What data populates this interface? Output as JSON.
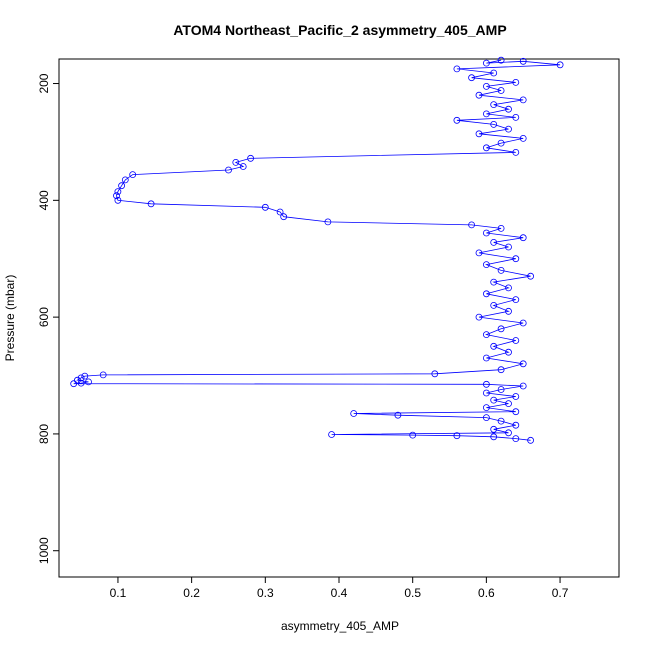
{
  "chart_data": {
    "type": "line",
    "title": "ATOM4 Northeast_Pacific_2 asymmetry_405_AMP",
    "xlabel": "asymmetry_405_AMP",
    "ylabel": "Pressure (mbar)",
    "xlim": [
      0.02,
      0.78
    ],
    "ylim": [
      1045,
      158
    ],
    "y_reversed": true,
    "x_ticks": [
      0.1,
      0.2,
      0.3,
      0.4,
      0.5,
      0.6,
      0.7
    ],
    "x_tick_labels": [
      "0.1",
      "0.2",
      "0.3",
      "0.4",
      "0.5",
      "0.6",
      "0.7"
    ],
    "y_ticks": [
      200,
      400,
      600,
      800,
      1000
    ],
    "y_tick_labels": [
      "200",
      "400",
      "600",
      "800",
      "1000"
    ],
    "marker": "open-circle",
    "line_color": "#0000ff",
    "series": [
      {
        "points": [
          [
            0.62,
            160
          ],
          [
            0.6,
            165
          ],
          [
            0.65,
            162
          ],
          [
            0.7,
            168
          ],
          [
            0.56,
            175
          ],
          [
            0.61,
            182
          ],
          [
            0.58,
            190
          ],
          [
            0.64,
            198
          ],
          [
            0.6,
            205
          ],
          [
            0.62,
            212
          ],
          [
            0.59,
            220
          ],
          [
            0.65,
            228
          ],
          [
            0.61,
            236
          ],
          [
            0.63,
            244
          ],
          [
            0.6,
            252
          ],
          [
            0.64,
            258
          ],
          [
            0.56,
            263
          ],
          [
            0.61,
            270
          ],
          [
            0.63,
            278
          ],
          [
            0.59,
            286
          ],
          [
            0.65,
            294
          ],
          [
            0.62,
            302
          ],
          [
            0.6,
            310
          ],
          [
            0.64,
            318
          ],
          [
            0.28,
            328
          ],
          [
            0.26,
            335
          ],
          [
            0.27,
            342
          ],
          [
            0.25,
            348
          ],
          [
            0.12,
            356
          ],
          [
            0.11,
            365
          ],
          [
            0.105,
            375
          ],
          [
            0.1,
            385
          ],
          [
            0.098,
            392
          ],
          [
            0.1,
            400
          ],
          [
            0.145,
            406
          ],
          [
            0.3,
            412
          ],
          [
            0.32,
            420
          ],
          [
            0.325,
            428
          ],
          [
            0.385,
            437
          ],
          [
            0.58,
            442
          ],
          [
            0.62,
            448
          ],
          [
            0.6,
            456
          ],
          [
            0.65,
            464
          ],
          [
            0.61,
            472
          ],
          [
            0.63,
            480
          ],
          [
            0.59,
            490
          ],
          [
            0.64,
            500
          ],
          [
            0.6,
            510
          ],
          [
            0.62,
            520
          ],
          [
            0.66,
            530
          ],
          [
            0.61,
            540
          ],
          [
            0.63,
            550
          ],
          [
            0.6,
            560
          ],
          [
            0.64,
            570
          ],
          [
            0.61,
            580
          ],
          [
            0.63,
            590
          ],
          [
            0.59,
            600
          ],
          [
            0.65,
            610
          ],
          [
            0.62,
            620
          ],
          [
            0.6,
            630
          ],
          [
            0.64,
            640
          ],
          [
            0.61,
            650
          ],
          [
            0.63,
            660
          ],
          [
            0.6,
            670
          ],
          [
            0.65,
            680
          ],
          [
            0.62,
            690
          ],
          [
            0.53,
            697
          ],
          [
            0.08,
            699
          ],
          [
            0.055,
            701
          ],
          [
            0.05,
            704
          ],
          [
            0.045,
            708
          ],
          [
            0.06,
            711
          ],
          [
            0.05,
            713
          ],
          [
            0.04,
            714
          ],
          [
            0.6,
            715
          ],
          [
            0.65,
            718
          ],
          [
            0.62,
            724
          ],
          [
            0.6,
            730
          ],
          [
            0.64,
            736
          ],
          [
            0.61,
            742
          ],
          [
            0.63,
            748
          ],
          [
            0.6,
            755
          ],
          [
            0.64,
            762
          ],
          [
            0.42,
            765
          ],
          [
            0.48,
            768
          ],
          [
            0.6,
            772
          ],
          [
            0.62,
            778
          ],
          [
            0.64,
            785
          ],
          [
            0.61,
            792
          ],
          [
            0.63,
            798
          ],
          [
            0.39,
            801
          ],
          [
            0.5,
            802
          ],
          [
            0.56,
            803
          ],
          [
            0.61,
            805
          ],
          [
            0.64,
            808
          ],
          [
            0.66,
            811
          ]
        ]
      }
    ]
  }
}
